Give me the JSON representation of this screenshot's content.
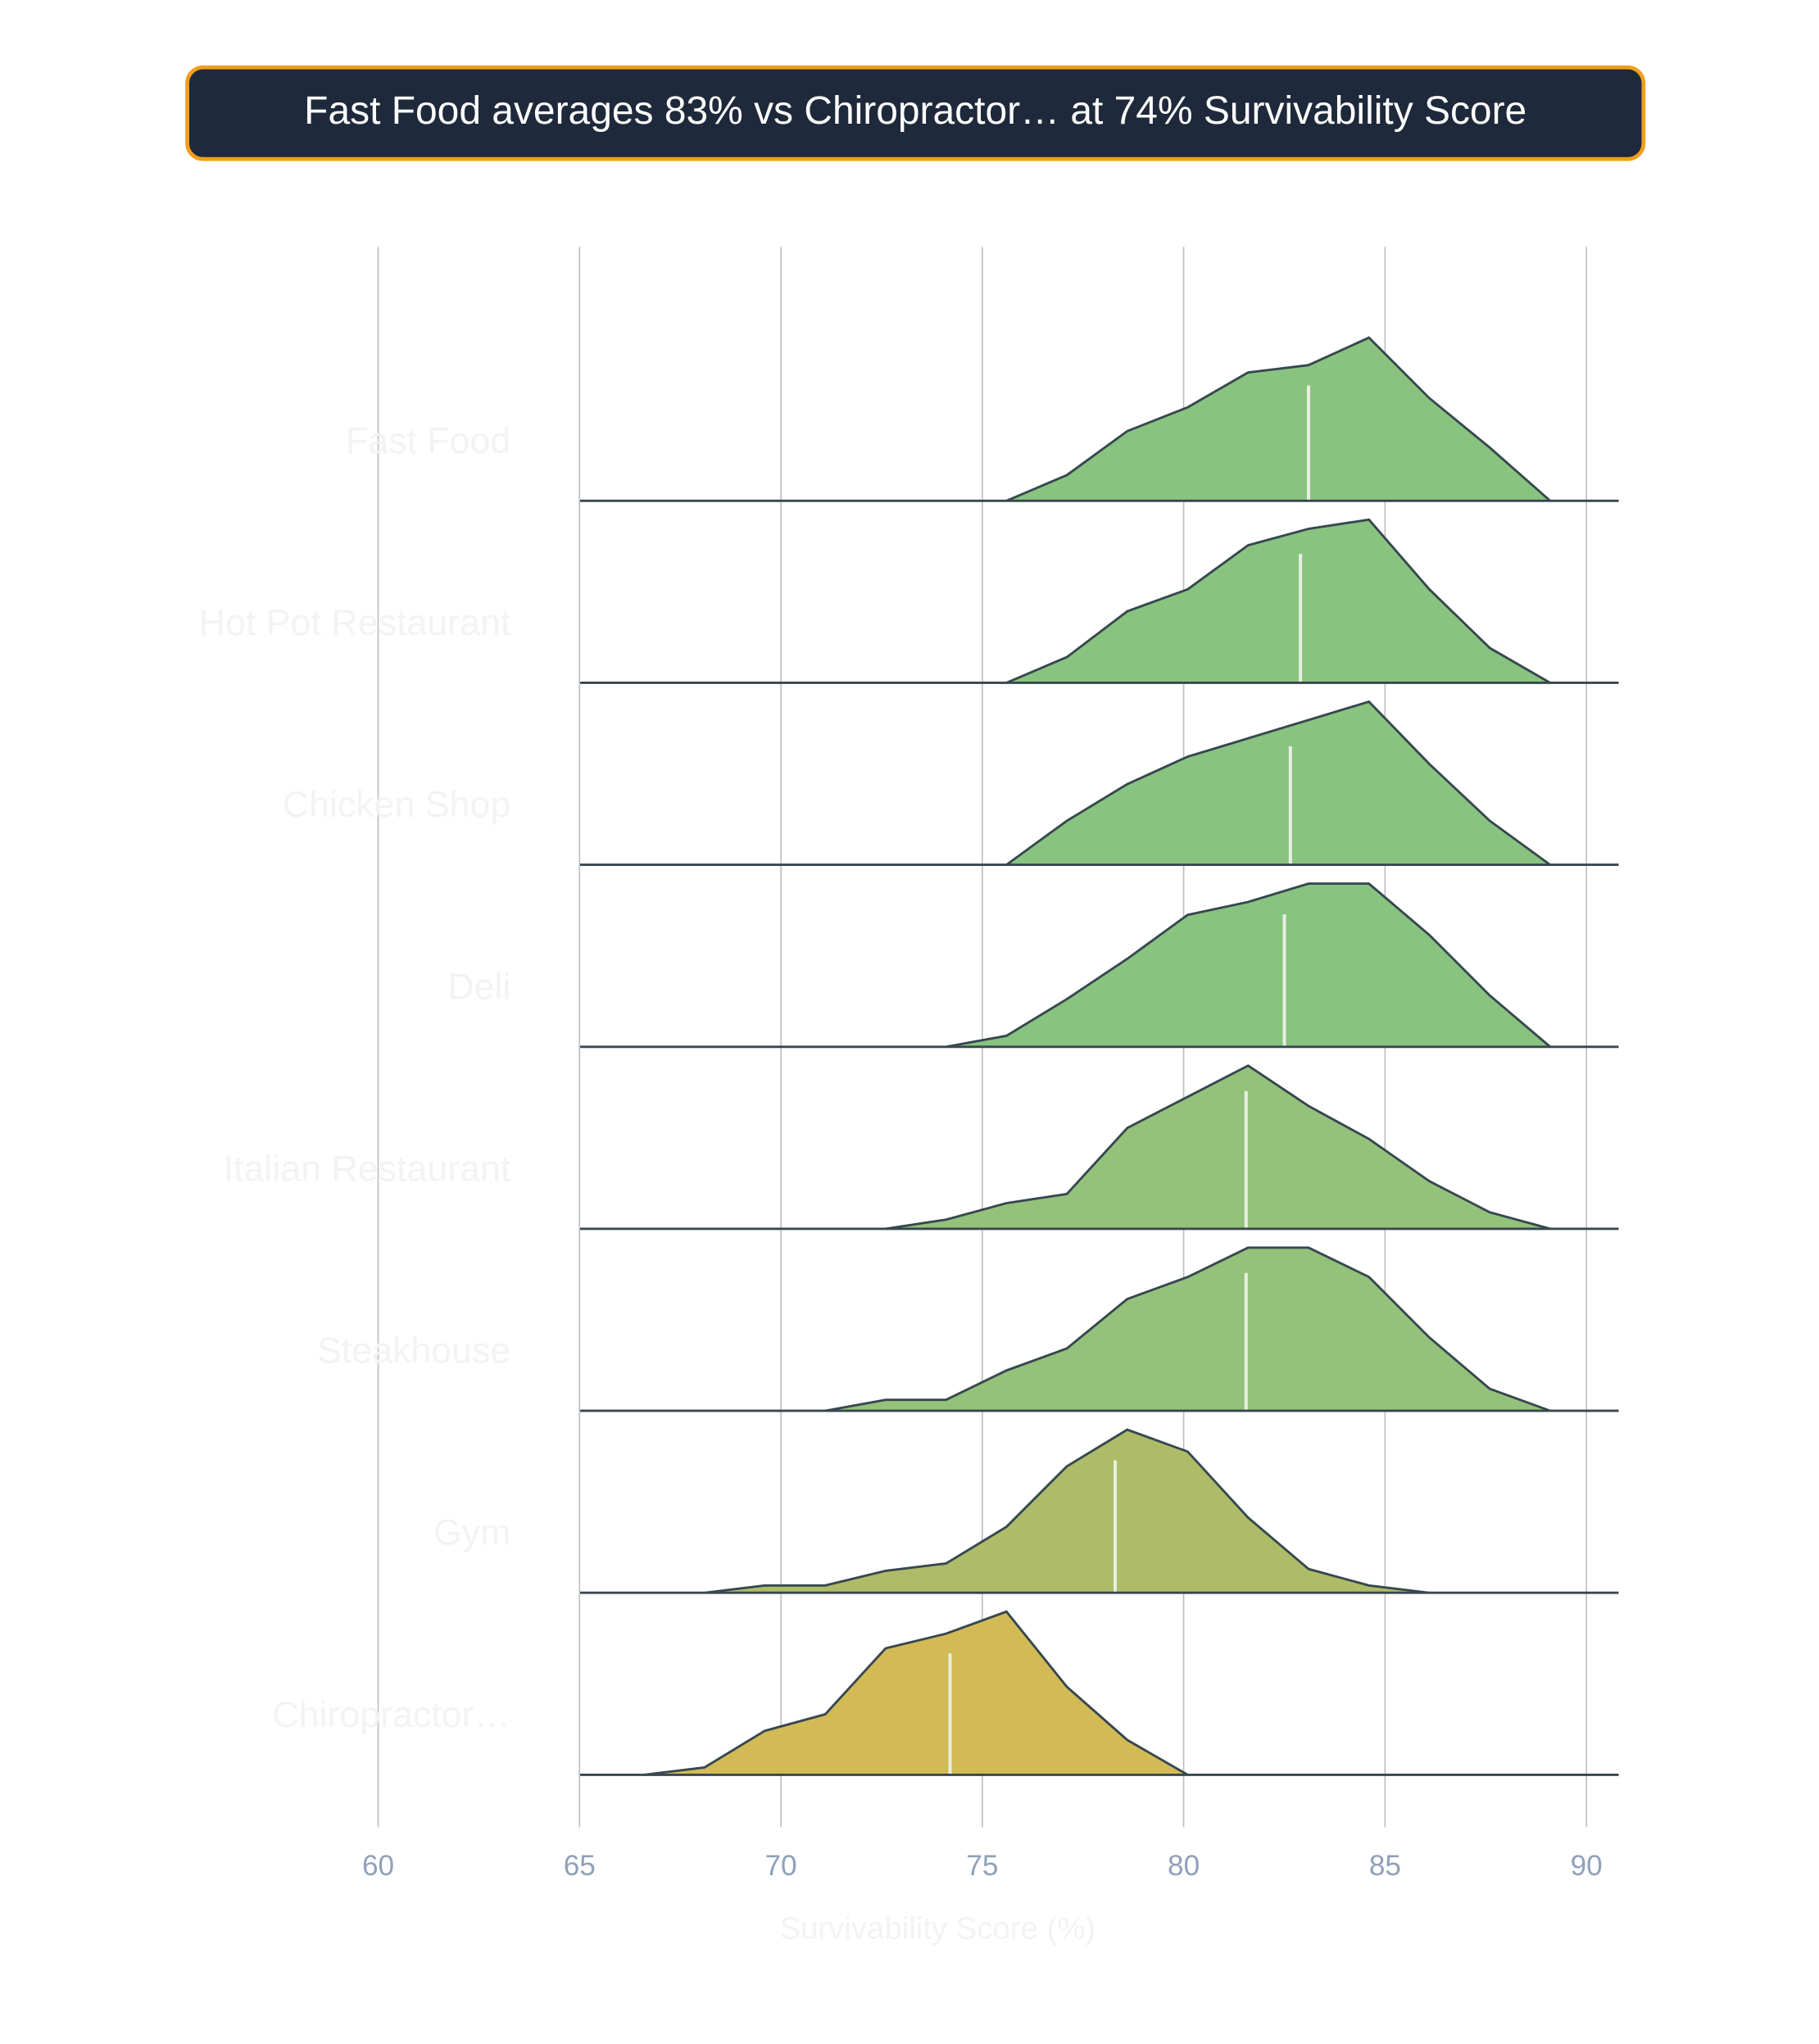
{
  "chart_data": {
    "type": "ridgeline",
    "title": "Fast Food averages 83% vs Chiropractor… at 74% Survivability Score",
    "x_label": "Survivability Score (%)",
    "xlim": [
      55,
      90.8
    ],
    "xticks": [
      60,
      65,
      70,
      75,
      80,
      85,
      90
    ],
    "grid": true,
    "x": [
      66.6,
      68.1,
      69.6,
      71.1,
      72.6,
      74.1,
      75.6,
      77.1,
      78.6,
      80.1,
      81.6,
      83.1,
      84.6,
      86.1,
      87.6,
      89.1
    ],
    "series": [
      {
        "name": "Fast Food",
        "color": "#88c47f",
        "mean": 83.1,
        "values": [
          null,
          null,
          null,
          null,
          null,
          null,
          0,
          0.14,
          0.38,
          0.51,
          0.7,
          0.74,
          0.89,
          0.56,
          0.29,
          0
        ]
      },
      {
        "name": "Hot Pot Restaurant",
        "color": "#88c47f",
        "mean": 82.9,
        "values": [
          null,
          null,
          null,
          null,
          null,
          null,
          0,
          0.14,
          0.39,
          0.51,
          0.75,
          0.84,
          0.89,
          0.51,
          0.19,
          0
        ]
      },
      {
        "name": "Chicken Shop",
        "color": "#88c47f",
        "mean": 82.65,
        "values": [
          null,
          null,
          null,
          null,
          null,
          null,
          0,
          0.24,
          0.44,
          0.59,
          0.69,
          0.79,
          0.89,
          0.55,
          0.24,
          0
        ]
      },
      {
        "name": "Deli",
        "color": "#88c47f",
        "mean": 82.5,
        "values": [
          null,
          null,
          null,
          null,
          null,
          0,
          0.06,
          0.26,
          0.48,
          0.72,
          0.79,
          0.89,
          0.89,
          0.61,
          0.28,
          0
        ]
      },
      {
        "name": "Italian Restaurant",
        "color": "#95c27b",
        "mean": 81.55,
        "values": [
          null,
          null,
          null,
          null,
          0,
          0.05,
          0.14,
          0.19,
          0.55,
          0.72,
          0.89,
          0.67,
          0.49,
          0.26,
          0.09,
          0
        ]
      },
      {
        "name": "Steakhouse",
        "color": "#95c27b",
        "mean": 81.55,
        "values": [
          null,
          null,
          null,
          0,
          0.06,
          0.06,
          0.22,
          0.34,
          0.61,
          0.73,
          0.89,
          0.89,
          0.73,
          0.4,
          0.12,
          0
        ]
      },
      {
        "name": "Gym",
        "color": "#aebc68",
        "mean": 78.3,
        "values": [
          null,
          0,
          0.04,
          0.04,
          0.12,
          0.16,
          0.36,
          0.69,
          0.89,
          0.77,
          0.41,
          0.13,
          0.04,
          0,
          null,
          null
        ]
      },
      {
        "name": "Chiropractor…",
        "color": "#d2bb55",
        "mean": 74.2,
        "values": [
          0,
          0.04,
          0.24,
          0.33,
          0.69,
          0.77,
          0.89,
          0.48,
          0.19,
          0,
          null,
          null,
          null,
          null,
          null,
          null
        ]
      }
    ]
  }
}
